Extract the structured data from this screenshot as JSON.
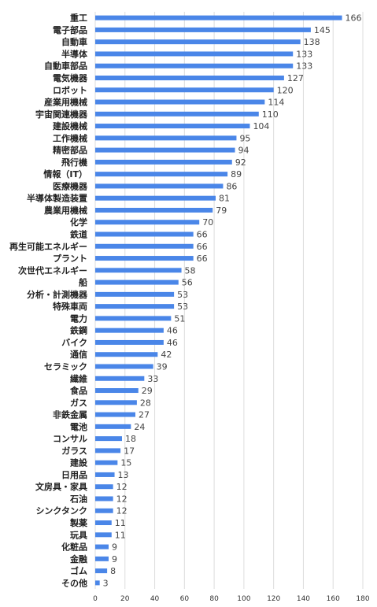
{
  "chart_data": {
    "type": "bar",
    "orientation": "horizontal",
    "title": "",
    "xlabel": "",
    "ylabel": "",
    "xlim": [
      0,
      180
    ],
    "xticks": [
      0,
      20,
      40,
      60,
      80,
      100,
      120,
      140,
      160,
      180
    ],
    "grid": true,
    "bar_color": "#4a86e8",
    "categories": [
      "重工",
      "電子部品",
      "自動車",
      "半導体",
      "自動車部品",
      "電気機器",
      "ロボット",
      "産業用機械",
      "宇宙関連機器",
      "建設機械",
      "工作機械",
      "精密部品",
      "飛行機",
      "情報（IT）",
      "医療機器",
      "半導体製造装置",
      "農業用機械",
      "化学",
      "鉄道",
      "再生可能エネルギー",
      "プラント",
      "次世代エネルギー",
      "船",
      "分析・計測機器",
      "特殊車両",
      "電力",
      "鉄鋼",
      "バイク",
      "通信",
      "セラミック",
      "繊維",
      "食品",
      "ガス",
      "非鉄金属",
      "電池",
      "コンサル",
      "ガラス",
      "建設",
      "日用品",
      "文房具・家具",
      "石油",
      "シンクタンク",
      "製薬",
      "玩具",
      "化粧品",
      "金融",
      "ゴム",
      "その他"
    ],
    "values": [
      166,
      145,
      138,
      133,
      133,
      127,
      120,
      114,
      110,
      104,
      95,
      94,
      92,
      89,
      86,
      81,
      79,
      70,
      66,
      66,
      66,
      58,
      56,
      53,
      53,
      51,
      46,
      46,
      42,
      39,
      33,
      29,
      28,
      27,
      24,
      18,
      17,
      15,
      13,
      12,
      12,
      12,
      11,
      11,
      9,
      9,
      8,
      3
    ]
  }
}
